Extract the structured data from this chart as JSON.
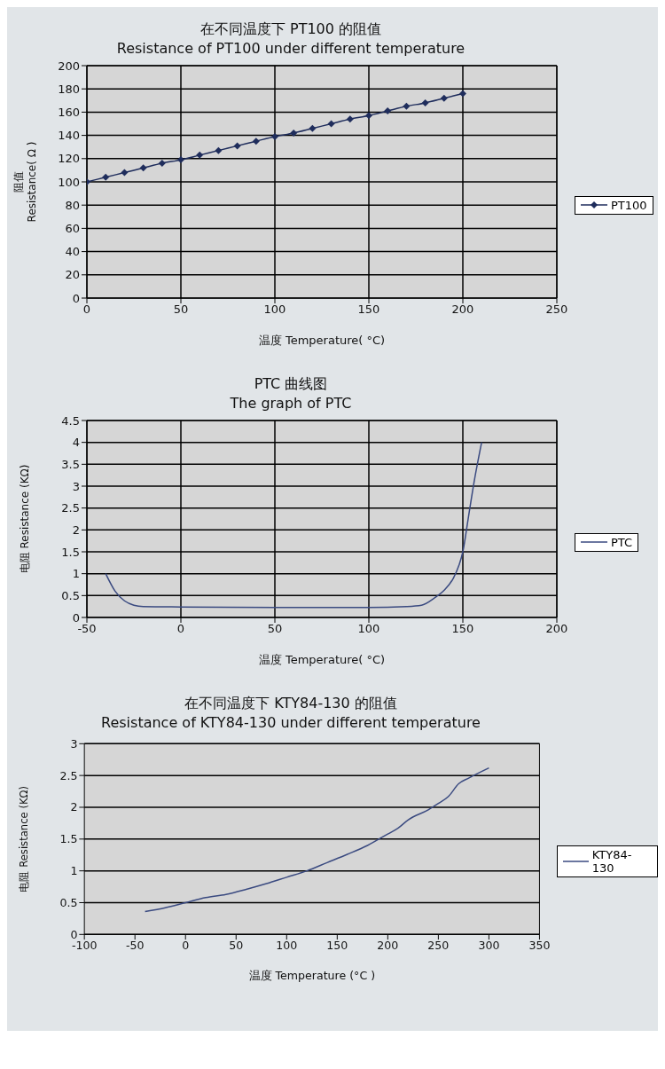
{
  "chart_data": [
    {
      "type": "line",
      "title": "在不同温度下 PT100 的阻值",
      "subtitle": "Resistance of PT100 under different temperature",
      "xlabel": "温度 Temperature( °C)",
      "ylabel": "阻值\nResistance( Ω )",
      "marker": "diamond",
      "grid": true,
      "legend": "right",
      "xlim": [
        0,
        250
      ],
      "xticks": [
        0,
        50,
        100,
        150,
        200,
        250
      ],
      "ylim": [
        0,
        200
      ],
      "yticks": [
        0,
        20,
        40,
        60,
        80,
        100,
        120,
        140,
        160,
        180,
        200
      ],
      "x": [
        0,
        10,
        20,
        30,
        40,
        50,
        60,
        70,
        80,
        90,
        100,
        110,
        120,
        130,
        140,
        150,
        160,
        170,
        180,
        190,
        200
      ],
      "series": [
        {
          "name": "PT100",
          "color": "#1f2d5c",
          "values": [
            100,
            104,
            108,
            112,
            116,
            119,
            123,
            127,
            131,
            135,
            139,
            142,
            146,
            150,
            154,
            157,
            161,
            165,
            168,
            172,
            176
          ]
        }
      ]
    },
    {
      "type": "line",
      "title": "PTC 曲线图",
      "subtitle": "The graph of PTC",
      "xlabel": "温度  Temperature( °C)",
      "ylabel": "电阻  Resistance (KΩ)",
      "grid": true,
      "legend": "right",
      "xlim": [
        -50,
        200
      ],
      "xticks": [
        -50,
        0,
        50,
        100,
        150,
        200
      ],
      "ylim": [
        0,
        4.5
      ],
      "yticks": [
        0,
        0.5,
        1,
        1.5,
        2,
        2.5,
        3,
        3.5,
        4,
        4.5
      ],
      "x": [
        -40,
        -35,
        -30,
        -25,
        -20,
        0,
        50,
        100,
        120,
        128,
        135,
        140,
        145,
        148,
        150,
        153,
        156,
        160
      ],
      "series": [
        {
          "name": "PTC",
          "color": "#3a4a80",
          "values": [
            1.0,
            0.6,
            0.38,
            0.28,
            0.25,
            0.24,
            0.23,
            0.23,
            0.25,
            0.28,
            0.45,
            0.62,
            0.9,
            1.2,
            1.5,
            2.3,
            3.1,
            4.0
          ]
        }
      ]
    },
    {
      "type": "line",
      "title": "在不同温度下 KTY84-130 的阻值",
      "subtitle": "Resistance of KTY84-130 under different temperature",
      "xlabel": "温度 Temperature (°C )",
      "ylabel": "电阻  Resistance (KΩ)",
      "grid": "y",
      "legend": "right",
      "xlim": [
        -100,
        350
      ],
      "xticks": [
        -100,
        -50,
        0,
        50,
        100,
        150,
        200,
        250,
        300,
        350
      ],
      "ylim": [
        0,
        3
      ],
      "yticks": [
        0,
        0.5,
        1,
        1.5,
        2,
        2.5,
        3
      ],
      "x": [
        -40,
        -20,
        0,
        20,
        40,
        60,
        80,
        100,
        120,
        140,
        160,
        180,
        200,
        210,
        220,
        240,
        250,
        260,
        270,
        280,
        300
      ],
      "series": [
        {
          "name": "KTY84-130",
          "color": "#3a4a80",
          "values": [
            0.36,
            0.42,
            0.5,
            0.58,
            0.63,
            0.71,
            0.8,
            0.9,
            1.0,
            1.13,
            1.26,
            1.4,
            1.58,
            1.67,
            1.8,
            1.96,
            2.06,
            2.17,
            2.37,
            2.46,
            2.62
          ]
        }
      ]
    }
  ]
}
